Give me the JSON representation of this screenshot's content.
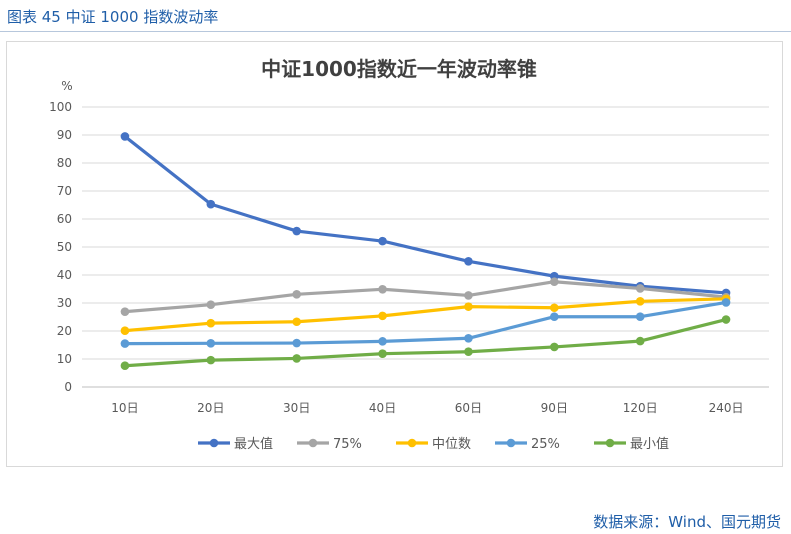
{
  "caption": "图表 45  中证 1000 指数波动率",
  "source": "数据来源：Wind、国元期货",
  "chart_data": {
    "type": "line",
    "title": "中证1000指数近一年波动率锥",
    "ylabel": "%",
    "xlabel": "",
    "ylim": [
      0,
      100
    ],
    "yticks": [
      0,
      10,
      20,
      30,
      40,
      50,
      60,
      70,
      80,
      90,
      100
    ],
    "grid": true,
    "legend_position": "bottom",
    "categories": [
      "10日",
      "20日",
      "30日",
      "40日",
      "60日",
      "90日",
      "120日",
      "240日"
    ],
    "series": [
      {
        "name": "最大值",
        "color": "#4472c4",
        "values": [
          89.5,
          65.3,
          55.7,
          52.1,
          44.9,
          39.6,
          36.0,
          33.6
        ]
      },
      {
        "name": "75%",
        "color": "#a5a5a5",
        "values": [
          26.9,
          29.4,
          33.1,
          34.9,
          32.7,
          37.6,
          35.2,
          32.1
        ]
      },
      {
        "name": "中位数",
        "color": "#ffc000",
        "values": [
          20.1,
          22.8,
          23.3,
          25.4,
          28.7,
          28.3,
          30.6,
          31.5
        ]
      },
      {
        "name": "25%",
        "color": "#5b9bd5",
        "values": [
          15.5,
          15.6,
          15.7,
          16.3,
          17.4,
          25.1,
          25.1,
          30.2
        ]
      },
      {
        "name": "最小值",
        "color": "#70ad47",
        "values": [
          7.6,
          9.6,
          10.2,
          11.9,
          12.6,
          14.3,
          16.4,
          24.1
        ]
      }
    ]
  }
}
